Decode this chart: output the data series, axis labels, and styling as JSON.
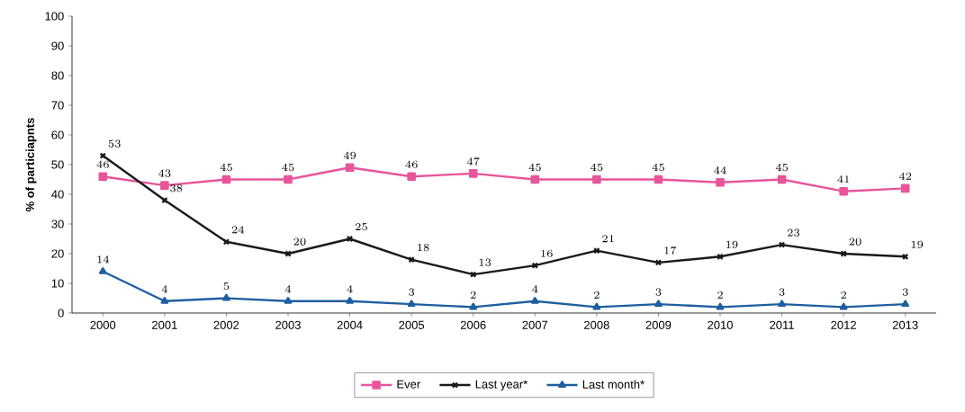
{
  "chart_data": {
    "type": "line",
    "ylabel": "% of particiapnts",
    "categories": [
      "2000",
      "2001",
      "2002",
      "2003",
      "2004",
      "2005",
      "2006",
      "2007",
      "2008",
      "2009",
      "2010",
      "2011",
      "2012",
      "2013"
    ],
    "series": [
      {
        "name": "Ever",
        "color": "#e8559a",
        "marker": "square",
        "values": [
          46,
          43,
          45,
          45,
          49,
          46,
          47,
          45,
          45,
          45,
          44,
          45,
          41,
          42
        ]
      },
      {
        "name": "Last year*",
        "color": "#1a1a1a",
        "marker": "cross",
        "values": [
          53,
          38,
          24,
          20,
          25,
          18,
          13,
          16,
          21,
          17,
          19,
          23,
          20,
          19
        ]
      },
      {
        "name": "Last month*",
        "color": "#1f5fa0",
        "marker": "triangle",
        "values": [
          14,
          4,
          5,
          4,
          4,
          3,
          2,
          4,
          2,
          3,
          2,
          3,
          2,
          3
        ]
      }
    ],
    "ylim": [
      0,
      100
    ],
    "yticks": [
      0,
      10,
      20,
      30,
      40,
      50,
      60,
      70,
      80,
      90,
      100
    ],
    "grid": false,
    "legend": "bottom",
    "data_labels": true,
    "line_style": "solid"
  }
}
